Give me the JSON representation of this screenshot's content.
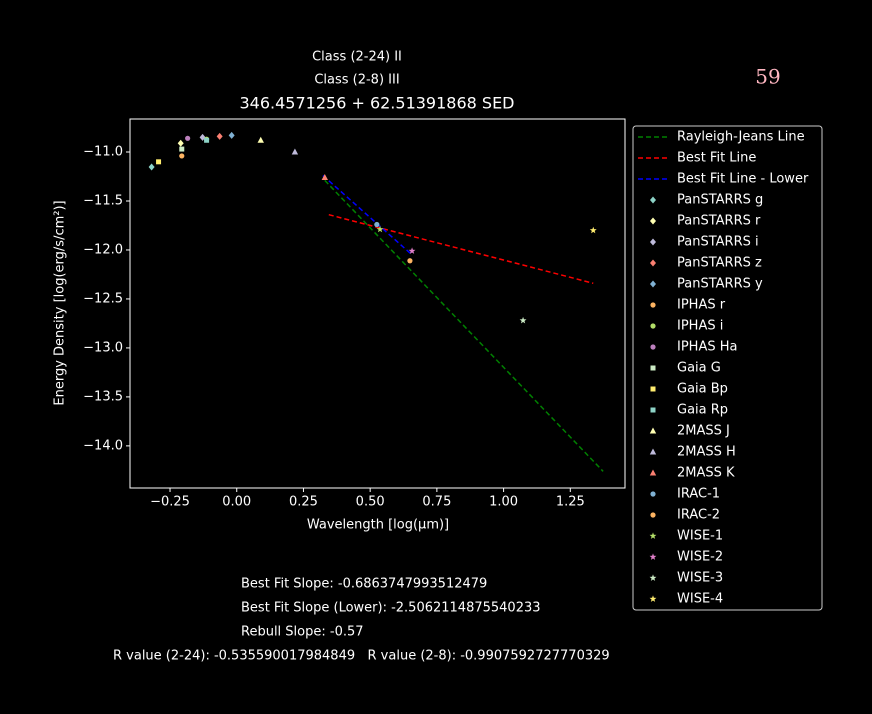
{
  "chart_data": {
    "type": "scatter",
    "title": "346.4571256 + 62.51391868 SED",
    "subtitles": [
      "Class (2-24) II",
      "Class (2-8) III"
    ],
    "corner_note": "59",
    "x_label": "Wavelength [log(μm)]",
    "y_label": "Energy Density [log(erg/s/cm²)]",
    "xlim": [
      -0.4,
      1.455
    ],
    "ylim": [
      -14.43,
      -10.663
    ],
    "xticks": [
      {
        "value": -0.25,
        "label": "−0.25"
      },
      {
        "value": 0,
        "label": "0.00"
      },
      0.25,
      {
        "value": 0.5,
        "label": "0.50"
      },
      0.75,
      {
        "value": 1,
        "label": "1.00"
      },
      1.25
    ],
    "yticks": [
      {
        "value": -11,
        "label": "−11.0"
      },
      {
        "value": -11.5,
        "label": "−11.5"
      },
      {
        "value": -12,
        "label": "−12.0"
      },
      {
        "value": -12.5,
        "label": "−12.5"
      },
      {
        "value": -13,
        "label": "−13.0"
      },
      {
        "value": -13.5,
        "label": "−13.5"
      },
      {
        "value": -14,
        "label": "−14.0"
      }
    ],
    "legend": "upper right outside",
    "series": [
      {
        "name": "Rayleigh-Jeans Line",
        "color": "#008000",
        "marker": "dashed-line",
        "x": [
          0.33,
          1.373
        ],
        "values": [
          -11.29,
          -14.26
        ]
      },
      {
        "name": "Best Fit Line",
        "color": "#ff0000",
        "marker": "dashed-line",
        "x": [
          0.345,
          1.336
        ],
        "values": [
          -11.64,
          -12.34
        ]
      },
      {
        "name": "Best Fit Line - Lower",
        "color": "#0000ff",
        "marker": "dashed-line",
        "x": [
          0.323,
          0.657
        ],
        "values": [
          -11.24,
          -12.05
        ]
      },
      {
        "name": "PanSTARRS g",
        "color": "#8dd3c7",
        "marker": "diamond",
        "x": [
          -0.319
        ],
        "values": [
          -11.153
        ]
      },
      {
        "name": "PanSTARRS r",
        "color": "#ffffb3",
        "marker": "diamond",
        "x": [
          -0.21
        ],
        "values": [
          -10.91
        ]
      },
      {
        "name": "PanSTARRS i",
        "color": "#bebada",
        "marker": "diamond",
        "x": [
          -0.128
        ],
        "values": [
          -10.85
        ]
      },
      {
        "name": "PanSTARRS z",
        "color": "#fb8072",
        "marker": "diamond",
        "x": [
          -0.064
        ],
        "values": [
          -10.84
        ]
      },
      {
        "name": "PanSTARRS y",
        "color": "#80b1d3",
        "marker": "diamond",
        "x": [
          -0.019
        ],
        "values": [
          -10.83
        ]
      },
      {
        "name": "IPHAS r",
        "color": "#fdb462",
        "marker": "circle",
        "x": [
          -0.206
        ],
        "values": [
          -11.04
        ]
      },
      {
        "name": "IPHAS i",
        "color": "#b3de69",
        "marker": "circle",
        "x": [
          -0.113
        ],
        "values": [
          -10.87
        ]
      },
      {
        "name": "IPHAS Ha",
        "color": "#bc80bd",
        "marker": "circle",
        "x": [
          -0.184
        ],
        "values": [
          -10.86
        ]
      },
      {
        "name": "Gaia G",
        "color": "#ccebc5",
        "marker": "square",
        "x": [
          -0.206
        ],
        "values": [
          -10.97
        ]
      },
      {
        "name": "Gaia Bp",
        "color": "#ffed6f",
        "marker": "square",
        "x": [
          -0.293
        ],
        "values": [
          -11.1
        ]
      },
      {
        "name": "Gaia Rp",
        "color": "#8dd3c7",
        "marker": "square",
        "x": [
          -0.113
        ],
        "values": [
          -10.88
        ]
      },
      {
        "name": "2MASS J",
        "color": "#ffffb3",
        "marker": "triangle",
        "x": [
          0.09
        ],
        "values": [
          -10.88
        ]
      },
      {
        "name": "2MASS H",
        "color": "#bebada",
        "marker": "triangle",
        "x": [
          0.218
        ],
        "values": [
          -11.0
        ]
      },
      {
        "name": "2MASS K",
        "color": "#fb8072",
        "marker": "triangle",
        "x": [
          0.33
        ],
        "values": [
          -11.26
        ]
      },
      {
        "name": "IRAC-1",
        "color": "#80b1d3",
        "marker": "circle",
        "x": [
          0.525
        ],
        "values": [
          -11.74
        ]
      },
      {
        "name": "IRAC-2",
        "color": "#fdb462",
        "marker": "circle",
        "x": [
          0.649
        ],
        "values": [
          -12.11
        ]
      },
      {
        "name": "WISE-1",
        "color": "#b3de69",
        "marker": "star",
        "x": [
          0.537
        ],
        "values": [
          -11.79
        ]
      },
      {
        "name": "WISE-2",
        "color": "#e07fc9",
        "marker": "star",
        "x": [
          0.657
        ],
        "values": [
          -12.01
        ]
      },
      {
        "name": "WISE-3",
        "color": "#ccebc5",
        "marker": "star",
        "x": [
          1.073
        ],
        "values": [
          -12.72
        ]
      },
      {
        "name": "WISE-4",
        "color": "#ffed6f",
        "marker": "star",
        "x": [
          1.336
        ],
        "values": [
          -11.8
        ]
      }
    ],
    "annotations": [
      "Best Fit Slope: -0.6863747993512479",
      "Best Fit Slope (Lower): -2.5062114875540233",
      "Rebull Slope: -0.57",
      "R value (2-24): -0.535590017984849   R value (2-8): -0.9907592727770329"
    ]
  }
}
